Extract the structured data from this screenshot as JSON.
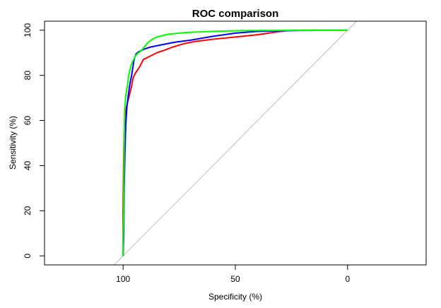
{
  "chart_data": {
    "type": "line",
    "title": "ROC comparison",
    "xlabel": "Specificity (%)",
    "ylabel": "Sensitivity (%)",
    "x_reversed": true,
    "xlim": [
      135,
      -35
    ],
    "ylim": [
      -4,
      104
    ],
    "x_ticks": [
      100,
      50,
      0
    ],
    "y_ticks": [
      0,
      20,
      40,
      60,
      80,
      100
    ],
    "grid": false,
    "legend": "none",
    "reference_line": {
      "from": [
        104,
        -4
      ],
      "to": [
        -4,
        104
      ],
      "color": "#bebebe"
    },
    "series": [
      {
        "color": "#ff0000",
        "points": [
          [
            100,
            0
          ],
          [
            100,
            20
          ],
          [
            99.8,
            40
          ],
          [
            99.5,
            55
          ],
          [
            99.2,
            62
          ],
          [
            98.5,
            66
          ],
          [
            97.5,
            70
          ],
          [
            96.5,
            74
          ],
          [
            95.5,
            79
          ],
          [
            94.5,
            81
          ],
          [
            92.5,
            84
          ],
          [
            91,
            87
          ],
          [
            88,
            88.5
          ],
          [
            85,
            90
          ],
          [
            82,
            91
          ],
          [
            78,
            92.5
          ],
          [
            73,
            94
          ],
          [
            68,
            95
          ],
          [
            60,
            96
          ],
          [
            50,
            97
          ],
          [
            40,
            98
          ],
          [
            32,
            99.2
          ],
          [
            25,
            100
          ],
          [
            0,
            100
          ]
        ]
      },
      {
        "color": "#0000ff",
        "points": [
          [
            100,
            0
          ],
          [
            99.7,
            10
          ],
          [
            99.5,
            30
          ],
          [
            99.2,
            45
          ],
          [
            98.8,
            58
          ],
          [
            98.3,
            66
          ],
          [
            97.7,
            71
          ],
          [
            97,
            76
          ],
          [
            96.2,
            80
          ],
          [
            95.6,
            84
          ],
          [
            95,
            87.5
          ],
          [
            94.2,
            89.5
          ],
          [
            93,
            90.5
          ],
          [
            91,
            91.5
          ],
          [
            88,
            92.5
          ],
          [
            83,
            93.5
          ],
          [
            77,
            94.7
          ],
          [
            70,
            95.6
          ],
          [
            60,
            97.3
          ],
          [
            50,
            98.7
          ],
          [
            40,
            99.5
          ],
          [
            32,
            99.7
          ],
          [
            20,
            99.9
          ],
          [
            15,
            99.9
          ]
        ]
      },
      {
        "color": "#00ff00",
        "points": [
          [
            100,
            0
          ],
          [
            100,
            5
          ],
          [
            99.7,
            20
          ],
          [
            99.6,
            40
          ],
          [
            99.5,
            50
          ],
          [
            99.3,
            65
          ],
          [
            98.8,
            71
          ],
          [
            98,
            76
          ],
          [
            97.5,
            80
          ],
          [
            96.6,
            84
          ],
          [
            95.6,
            86.5
          ],
          [
            94.6,
            88.5
          ],
          [
            93.5,
            89.7
          ],
          [
            92.5,
            90.5
          ],
          [
            91,
            92
          ],
          [
            89,
            94.5
          ],
          [
            87,
            96
          ],
          [
            85,
            97
          ],
          [
            80,
            98.2
          ],
          [
            72,
            99
          ],
          [
            60,
            99.5
          ],
          [
            48,
            99.8
          ],
          [
            35,
            99.9
          ],
          [
            0,
            100
          ]
        ]
      }
    ]
  }
}
